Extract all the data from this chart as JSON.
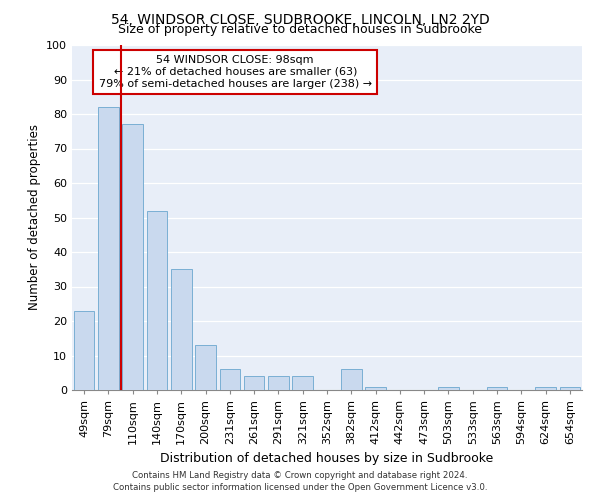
{
  "title": "54, WINDSOR CLOSE, SUDBROOKE, LINCOLN, LN2 2YD",
  "subtitle": "Size of property relative to detached houses in Sudbrooke",
  "xlabel": "Distribution of detached houses by size in Sudbrooke",
  "ylabel": "Number of detached properties",
  "bar_labels": [
    "49sqm",
    "79sqm",
    "110sqm",
    "140sqm",
    "170sqm",
    "200sqm",
    "231sqm",
    "261sqm",
    "291sqm",
    "321sqm",
    "352sqm",
    "382sqm",
    "412sqm",
    "442sqm",
    "473sqm",
    "503sqm",
    "533sqm",
    "563sqm",
    "594sqm",
    "624sqm",
    "654sqm"
  ],
  "bar_values": [
    23,
    82,
    77,
    52,
    35,
    13,
    6,
    4,
    4,
    4,
    0,
    6,
    1,
    0,
    0,
    1,
    0,
    1,
    0,
    1,
    1
  ],
  "bar_color": "#c9d9ee",
  "bar_edge_color": "#7aafd4",
  "vline_color": "#cc0000",
  "ylim": [
    0,
    100
  ],
  "yticks": [
    0,
    10,
    20,
    30,
    40,
    50,
    60,
    70,
    80,
    90,
    100
  ],
  "annotation_title": "54 WINDSOR CLOSE: 98sqm",
  "annotation_line1": "← 21% of detached houses are smaller (63)",
  "annotation_line2": "79% of semi-detached houses are larger (238) →",
  "annotation_box_color": "white",
  "annotation_box_edge": "#cc0000",
  "footer1": "Contains HM Land Registry data © Crown copyright and database right 2024.",
  "footer2": "Contains public sector information licensed under the Open Government Licence v3.0.",
  "background_color": "#ffffff",
  "plot_background": "#e8eef8",
  "grid_color": "#ffffff",
  "title_fontsize": 10,
  "subtitle_fontsize": 9
}
